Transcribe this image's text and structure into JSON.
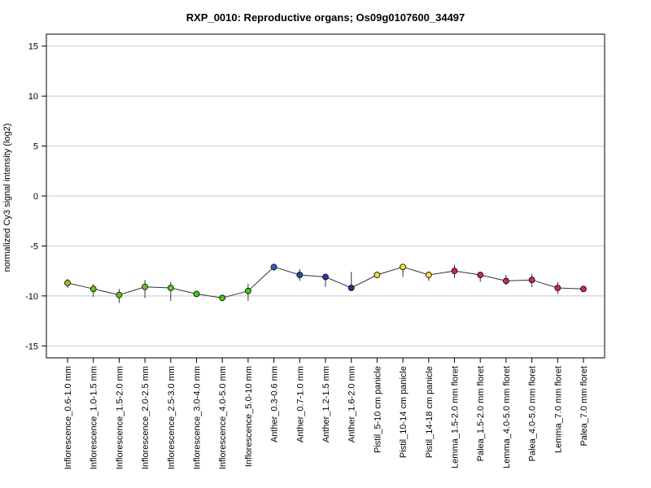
{
  "chart_data": {
    "type": "line",
    "title": "RXP_0010: Reproductive organs; Os09g0107600_34497",
    "xlabel": "",
    "ylabel": "normalized Cy3 signal intensity (log2)",
    "ylim": [
      -16.2,
      16.2
    ],
    "yticks": [
      -15,
      -10,
      -5,
      0,
      5,
      10,
      15
    ],
    "grid": "horizontal",
    "categories": [
      "Inflorescence_0.6-1.0 mm",
      "Inflorescence_1.0-1.5 mm",
      "Inflorescence_1.5-2.0 mm",
      "Inflorescence_2.0-2.5 mm",
      "Inflorescence_2.5-3.0 mm",
      "Inflorescence_3.0-4.0 mm",
      "Inflorescence_4.0-5.0 mm",
      "Inflorescence_5.0-10 mm",
      "Anther_0.3-0.6 mm",
      "Anther_0.7-1.0 mm",
      "Anther_1.2-1.5 mm",
      "Anther_1.6-2.0 mm",
      "Pistil_5-10 cm panicle",
      "Pistil_10-14 cm panicle",
      "Pistil_14-18 cm panicle",
      "Lemma_1.5-2.0 mm floret",
      "Palea_1.5-2.0 mm floret",
      "Lemma_4.0-5.0 mm floret",
      "Palea_4.0-5.0 mm floret",
      "Lemma_7.0 mm floret",
      "Palea_7.0 mm floret"
    ],
    "values": [
      -8.7,
      -9.3,
      -9.9,
      -9.1,
      -9.2,
      -9.8,
      -10.2,
      -9.5,
      -7.1,
      -7.9,
      -8.1,
      -9.2,
      -7.9,
      -7.1,
      -7.9,
      -7.5,
      -7.9,
      -8.5,
      -8.4,
      -9.2,
      -9.3
    ],
    "error_low": [
      -9.2,
      -10.1,
      -10.7,
      -10.2,
      -10.5,
      -9.9,
      -10.5,
      -10.5,
      -7.5,
      -8.5,
      -9.1,
      -9.3,
      -8.1,
      -8.1,
      -8.5,
      -8.2,
      -8.6,
      -8.9,
      -9.1,
      -9.8,
      -9.5
    ],
    "error_high": [
      -8.3,
      -8.8,
      -9.3,
      -8.4,
      -8.6,
      -9.6,
      -9.9,
      -8.8,
      -6.8,
      -7.3,
      -7.9,
      -7.6,
      -7.7,
      -6.9,
      -7.6,
      -6.9,
      -7.6,
      -7.9,
      -7.8,
      -8.6,
      -9.1
    ],
    "colors": [
      "#a0c020",
      "#6cc020",
      "#56c81e",
      "#6cc020",
      "#56c81e",
      "#3ec81e",
      "#3ec81e",
      "#3ec81e",
      "#3a5cc0",
      "#2a4aa8",
      "#24409c",
      "#1e3890",
      "#e8e040",
      "#e8e040",
      "#e8e040",
      "#d0207a",
      "#d0207a",
      "#d0207a",
      "#d0207a",
      "#d0207a",
      "#d0207a"
    ]
  }
}
